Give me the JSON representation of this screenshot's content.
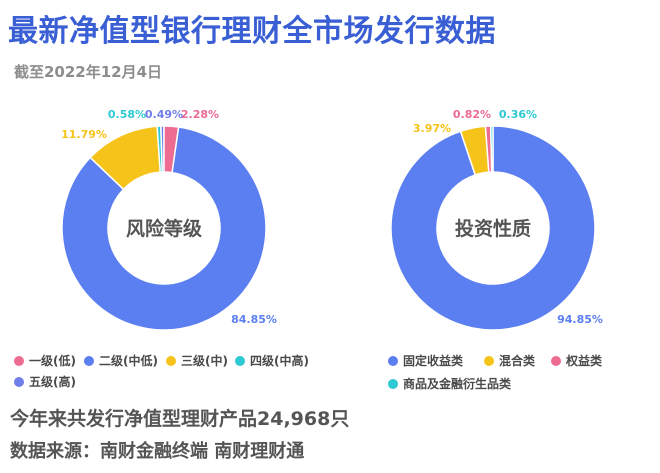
{
  "header": {
    "title": "最新净值型银行理财全市场发行数据",
    "subtitle": "截至2022年12月4日"
  },
  "colors": {
    "blue": "#5b7ff0",
    "yellow": "#f6c31a",
    "pink": "#ee6b92",
    "cyan": "#2ec9d2",
    "violet": "#6f7ee8"
  },
  "chart_data": [
    {
      "type": "pie",
      "center_label": "风险等级",
      "slices": [
        {
          "name": "一级(低)",
          "value": 2.28,
          "label": "2.28%",
          "color": "#ee6b92"
        },
        {
          "name": "二级(中低)",
          "value": 84.85,
          "label": "84.85%",
          "color": "#5b7ff0"
        },
        {
          "name": "三级(中)",
          "value": 11.79,
          "label": "11.79%",
          "color": "#f6c31a"
        },
        {
          "name": "四级(中高)",
          "value": 0.58,
          "label": "0.58%",
          "color": "#2ec9d2"
        },
        {
          "name": "五级(高)",
          "value": 0.49,
          "label": "0.49%",
          "color": "#6f7ee8"
        }
      ]
    },
    {
      "type": "pie",
      "center_label": "投资性质",
      "slices": [
        {
          "name": "固定收益类",
          "value": 94.85,
          "label": "94.85%",
          "color": "#5b7ff0"
        },
        {
          "name": "混合类",
          "value": 3.97,
          "label": "3.97%",
          "color": "#f6c31a"
        },
        {
          "name": "权益类",
          "value": 0.82,
          "label": "0.82%",
          "color": "#ee6b92"
        },
        {
          "name": "商品及金融衍生品类",
          "value": 0.36,
          "label": "0.36%",
          "color": "#2ec9d2"
        }
      ]
    }
  ],
  "footer": {
    "note": "今年来共发行净值型理财产品24,968只",
    "source": "数据来源：南财金融终端 南财理财通"
  }
}
